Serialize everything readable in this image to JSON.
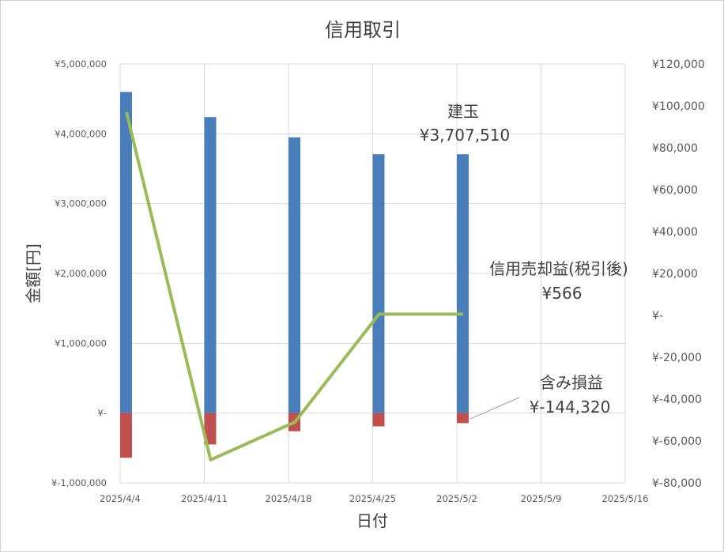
{
  "chart_data": {
    "type": "bar",
    "title": "信用取引",
    "xlabel": "日付",
    "ylabel": "金額[円]",
    "x_ticks": [
      "2025/4/4",
      "2025/4/11",
      "2025/4/18",
      "2025/4/25",
      "2025/5/2",
      "2025/5/9",
      "2025/5/16"
    ],
    "y_left_ticks": [
      "¥5,000,000",
      "¥4,000,000",
      "¥3,000,000",
      "¥2,000,000",
      "¥1,000,000",
      "¥-",
      "¥-1,000,000"
    ],
    "y_right_ticks": [
      "¥120,000",
      "¥100,000",
      "¥80,000",
      "¥60,000",
      "¥40,000",
      "¥20,000",
      "¥-",
      "¥-20,000",
      "¥-40,000",
      "¥-60,000",
      "¥-80,000"
    ],
    "ylim_left": [
      -1000000,
      5000000
    ],
    "ylim_right": [
      -80000,
      120000
    ],
    "grid": true,
    "series": [
      {
        "kind": "bar",
        "axis": "left",
        "color": "#4a7ebb",
        "x": [
          "2025/4/4",
          "2025/4/11",
          "2025/4/18",
          "2025/4/25",
          "2025/5/2"
        ],
        "values": [
          4600000,
          4240000,
          3950000,
          3707510,
          3707510
        ]
      },
      {
        "kind": "bar",
        "axis": "left",
        "color": "#c0504d",
        "x": [
          "2025/4/4",
          "2025/4/11",
          "2025/4/18",
          "2025/4/25",
          "2025/5/2"
        ],
        "values": [
          -640000,
          -450000,
          -260000,
          -190000,
          -144320
        ]
      },
      {
        "kind": "line",
        "axis": "right",
        "color": "#9bbb59",
        "x": [
          "2025/4/4",
          "2025/4/11",
          "2025/4/18",
          "2025/4/25",
          "2025/5/2"
        ],
        "values": [
          97000,
          -69000,
          -51000,
          566,
          566
        ]
      }
    ],
    "annotations": [
      {
        "id": "tategyoku",
        "label": "建玉",
        "value": "¥3,707,510"
      },
      {
        "id": "profit",
        "label": "信用売却益(税引後)",
        "value": "¥566"
      },
      {
        "id": "unrealized",
        "label": "含み損益",
        "value": "¥-144,320"
      }
    ]
  }
}
